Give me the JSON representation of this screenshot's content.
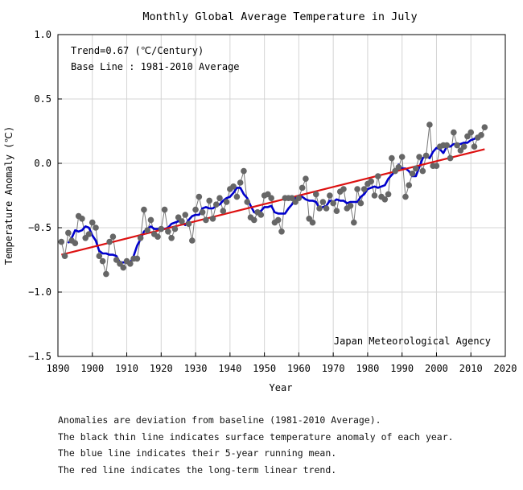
{
  "chart_data": {
    "type": "line",
    "title": "Monthly Global Average Temperature in July",
    "xlabel": "Year",
    "ylabel": "Temperature Anomaly (℃)",
    "xlim": [
      1890,
      2020
    ],
    "ylim": [
      -1.5,
      1.0
    ],
    "xticks": [
      1890,
      1900,
      1910,
      1920,
      1930,
      1940,
      1950,
      1960,
      1970,
      1980,
      1990,
      2000,
      2010,
      2020
    ],
    "yticks": [
      1.0,
      0.5,
      0.0,
      -0.5,
      -1.0,
      -1.5
    ],
    "ytick_labels": [
      "1.0",
      "0.5",
      "0.0",
      "−0.5",
      "−1.0",
      "−1.5"
    ],
    "grid": true,
    "annotations": {
      "trend": "Trend=0.67 (℃/Century)",
      "baseline": "Base Line : 1981-2010 Average",
      "source": "Japan Meteorological Agency"
    },
    "colors": {
      "annual": "#666666",
      "running_mean": "#0000cc",
      "trend": "#dd1111"
    },
    "x": [
      1891,
      1892,
      1893,
      1894,
      1895,
      1896,
      1897,
      1898,
      1899,
      1900,
      1901,
      1902,
      1903,
      1904,
      1905,
      1906,
      1907,
      1908,
      1909,
      1910,
      1911,
      1912,
      1913,
      1914,
      1915,
      1916,
      1917,
      1918,
      1919,
      1920,
      1921,
      1922,
      1923,
      1924,
      1925,
      1926,
      1927,
      1928,
      1929,
      1930,
      1931,
      1932,
      1933,
      1934,
      1935,
      1936,
      1937,
      1938,
      1939,
      1940,
      1941,
      1942,
      1943,
      1944,
      1945,
      1946,
      1947,
      1948,
      1949,
      1950,
      1951,
      1952,
      1953,
      1954,
      1955,
      1956,
      1957,
      1958,
      1959,
      1960,
      1961,
      1962,
      1963,
      1964,
      1965,
      1966,
      1967,
      1968,
      1969,
      1970,
      1971,
      1972,
      1973,
      1974,
      1975,
      1976,
      1977,
      1978,
      1979,
      1980,
      1981,
      1982,
      1983,
      1984,
      1985,
      1986,
      1987,
      1988,
      1989,
      1990,
      1991,
      1992,
      1993,
      1994,
      1995,
      1996,
      1997,
      1998,
      1999,
      2000,
      2001,
      2002,
      2003,
      2004,
      2005,
      2006,
      2007,
      2008,
      2009,
      2010,
      2011,
      2012,
      2013,
      2014
    ],
    "series": [
      {
        "name": "annual",
        "values": [
          -0.61,
          -0.72,
          -0.54,
          -0.6,
          -0.62,
          -0.41,
          -0.43,
          -0.58,
          -0.55,
          -0.46,
          -0.5,
          -0.72,
          -0.76,
          -0.86,
          -0.61,
          -0.57,
          -0.75,
          -0.78,
          -0.81,
          -0.76,
          -0.78,
          -0.74,
          -0.74,
          -0.58,
          -0.36,
          -0.52,
          -0.44,
          -0.55,
          -0.57,
          -0.51,
          -0.36,
          -0.53,
          -0.58,
          -0.51,
          -0.42,
          -0.45,
          -0.4,
          -0.47,
          -0.6,
          -0.36,
          -0.26,
          -0.38,
          -0.44,
          -0.29,
          -0.43,
          -0.32,
          -0.27,
          -0.37,
          -0.3,
          -0.2,
          -0.18,
          -0.26,
          -0.15,
          -0.06,
          -0.3,
          -0.42,
          -0.44,
          -0.38,
          -0.4,
          -0.25,
          -0.24,
          -0.27,
          -0.46,
          -0.44,
          -0.53,
          -0.27,
          -0.27,
          -0.27,
          -0.3,
          -0.27,
          -0.19,
          -0.12,
          -0.43,
          -0.46,
          -0.24,
          -0.35,
          -0.3,
          -0.35,
          -0.25,
          -0.31,
          -0.37,
          -0.22,
          -0.2,
          -0.35,
          -0.33,
          -0.46,
          -0.2,
          -0.31,
          -0.2,
          -0.16,
          -0.14,
          -0.25,
          -0.1,
          -0.26,
          -0.28,
          -0.24,
          0.04,
          -0.06,
          -0.03,
          0.05,
          -0.26,
          -0.17,
          -0.08,
          -0.04,
          0.05,
          -0.06,
          0.06,
          0.3,
          -0.02,
          -0.02,
          0.13,
          0.14,
          0.14,
          0.04,
          0.24,
          0.14,
          0.1,
          0.13,
          0.21,
          0.24,
          0.13,
          0.2,
          0.22,
          0.28
        ]
      },
      {
        "name": "running_mean",
        "x": [
          1893,
          1894,
          1895,
          1896,
          1897,
          1898,
          1899,
          1900,
          1901,
          1902,
          1903,
          1904,
          1905,
          1906,
          1907,
          1908,
          1909,
          1910,
          1911,
          1912,
          1913,
          1914,
          1915,
          1916,
          1917,
          1918,
          1919,
          1920,
          1921,
          1922,
          1923,
          1924,
          1925,
          1926,
          1927,
          1928,
          1929,
          1930,
          1931,
          1932,
          1933,
          1934,
          1935,
          1936,
          1937,
          1938,
          1939,
          1940,
          1941,
          1942,
          1943,
          1944,
          1945,
          1946,
          1947,
          1948,
          1949,
          1950,
          1951,
          1952,
          1953,
          1954,
          1955,
          1956,
          1957,
          1958,
          1959,
          1960,
          1961,
          1962,
          1963,
          1964,
          1965,
          1966,
          1967,
          1968,
          1969,
          1970,
          1971,
          1972,
          1973,
          1974,
          1975,
          1976,
          1977,
          1978,
          1979,
          1980,
          1981,
          1982,
          1983,
          1984,
          1985,
          1986,
          1987,
          1988,
          1989,
          1990,
          1991,
          1992,
          1993,
          1994,
          1995,
          1996,
          1997,
          1998,
          1999,
          2000,
          2001,
          2002,
          2003,
          2004,
          2005,
          2006,
          2007,
          2008,
          2009,
          2010,
          2011,
          2012
        ],
        "values": [
          -0.62,
          -0.58,
          -0.52,
          -0.53,
          -0.52,
          -0.49,
          -0.5,
          -0.56,
          -0.6,
          -0.68,
          -0.7,
          -0.7,
          -0.71,
          -0.71,
          -0.72,
          -0.77,
          -0.77,
          -0.77,
          -0.77,
          -0.72,
          -0.64,
          -0.59,
          -0.53,
          -0.51,
          -0.49,
          -0.51,
          -0.51,
          -0.5,
          -0.51,
          -0.5,
          -0.47,
          -0.46,
          -0.45,
          -0.45,
          -0.48,
          -0.44,
          -0.41,
          -0.4,
          -0.4,
          -0.35,
          -0.34,
          -0.35,
          -0.35,
          -0.33,
          -0.32,
          -0.29,
          -0.27,
          -0.26,
          -0.23,
          -0.19,
          -0.19,
          -0.24,
          -0.27,
          -0.33,
          -0.38,
          -0.39,
          -0.37,
          -0.34,
          -0.34,
          -0.33,
          -0.38,
          -0.39,
          -0.39,
          -0.39,
          -0.35,
          -0.32,
          -0.27,
          -0.25,
          -0.26,
          -0.28,
          -0.29,
          -0.29,
          -0.3,
          -0.35,
          -0.34,
          -0.33,
          -0.29,
          -0.3,
          -0.28,
          -0.29,
          -0.29,
          -0.31,
          -0.3,
          -0.3,
          -0.3,
          -0.26,
          -0.24,
          -0.2,
          -0.19,
          -0.18,
          -0.19,
          -0.18,
          -0.17,
          -0.12,
          -0.09,
          -0.06,
          -0.01,
          -0.04,
          -0.04,
          -0.06,
          -0.1,
          -0.1,
          -0.03,
          0.04,
          0.06,
          0.04,
          0.09,
          0.12,
          0.11,
          0.08,
          0.13,
          0.13,
          0.15,
          0.15,
          0.15,
          0.16,
          0.16,
          0.18,
          0.19,
          0.21
        ]
      },
      {
        "name": "trend",
        "x": [
          1891,
          2014
        ],
        "values": [
          -0.71,
          0.11
        ]
      }
    ]
  },
  "notes": [
    "Anomalies are deviation from baseline (1981-2010 Average).",
    "The black thin line indicates surface temperature anomaly of each year.",
    "The blue line indicates their 5-year running mean.",
    "The red line indicates the long-term linear trend."
  ]
}
